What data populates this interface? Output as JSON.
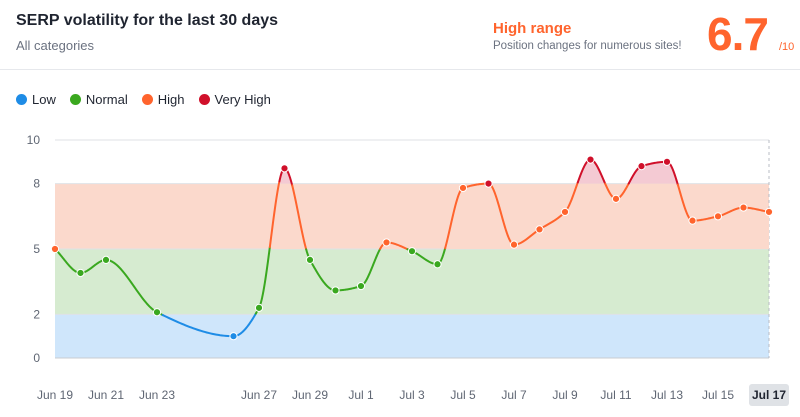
{
  "header": {
    "title": "SERP volatility for the last 30 days",
    "subtitle": "All categories",
    "range_title": "High range",
    "range_desc": "Position changes for numerous sites!",
    "score": "6.7",
    "score_max": "/10"
  },
  "chart_data": {
    "type": "line",
    "legend_position": "top-left",
    "legend": [
      {
        "key": "low",
        "label": "Low",
        "color": "#1e8ce6"
      },
      {
        "key": "normal",
        "label": "Normal",
        "color": "#3aa81f"
      },
      {
        "key": "high",
        "label": "High",
        "color": "#ff642d"
      },
      {
        "key": "very_high",
        "label": "Very High",
        "color": "#d0102a"
      }
    ],
    "bands": [
      {
        "key": "low",
        "from": 0,
        "to": 2,
        "fill": "#cfe6fb"
      },
      {
        "key": "normal",
        "from": 2,
        "to": 5,
        "fill": "#d6ebd0"
      },
      {
        "key": "high",
        "from": 5,
        "to": 8,
        "fill": "#fbd9cc"
      },
      {
        "key": "very_high",
        "from": 8,
        "to": 10,
        "fill": "#f4cad3"
      }
    ],
    "y_ticks": [
      "0",
      "2",
      "5",
      "8",
      "10"
    ],
    "y_tick_values": [
      0,
      2,
      5,
      8,
      10
    ],
    "ylim": [
      0,
      10
    ],
    "grid": true,
    "x_labels": [
      "Jun 19",
      "Jun 21",
      "Jun 23",
      "Jun 27",
      "Jun 29",
      "Jul 1",
      "Jul 3",
      "Jul 5",
      "Jul 7",
      "Jul 9",
      "Jul 11",
      "Jul 13",
      "Jul 15",
      "Jul 17"
    ],
    "x_label_days": [
      0,
      2,
      4,
      8,
      10,
      12,
      14,
      16,
      18,
      20,
      22,
      24,
      26,
      28
    ],
    "highlighted_label": "Jul 17",
    "xlim_days": [
      0,
      28
    ],
    "series": [
      {
        "points": [
          {
            "day": 0,
            "value": 5.0
          },
          {
            "day": 1,
            "value": 3.9
          },
          {
            "day": 2,
            "value": 4.5
          },
          {
            "day": 4,
            "value": 2.1
          },
          {
            "day": 7,
            "value": 1.0
          },
          {
            "day": 8,
            "value": 2.3
          },
          {
            "day": 9,
            "value": 8.7
          },
          {
            "day": 10,
            "value": 4.5
          },
          {
            "day": 11,
            "value": 3.1
          },
          {
            "day": 12,
            "value": 3.3
          },
          {
            "day": 13,
            "value": 5.3
          },
          {
            "day": 14,
            "value": 4.9
          },
          {
            "day": 15,
            "value": 4.3
          },
          {
            "day": 16,
            "value": 7.8
          },
          {
            "day": 17,
            "value": 8.0
          },
          {
            "day": 18,
            "value": 5.2
          },
          {
            "day": 19,
            "value": 5.9
          },
          {
            "day": 20,
            "value": 6.7
          },
          {
            "day": 21,
            "value": 9.1
          },
          {
            "day": 22,
            "value": 7.3
          },
          {
            "day": 23,
            "value": 8.8
          },
          {
            "day": 24,
            "value": 9.0
          },
          {
            "day": 25,
            "value": 6.3
          },
          {
            "day": 26,
            "value": 6.5
          },
          {
            "day": 27,
            "value": 6.9
          },
          {
            "day": 28,
            "value": 6.7
          }
        ]
      }
    ]
  }
}
